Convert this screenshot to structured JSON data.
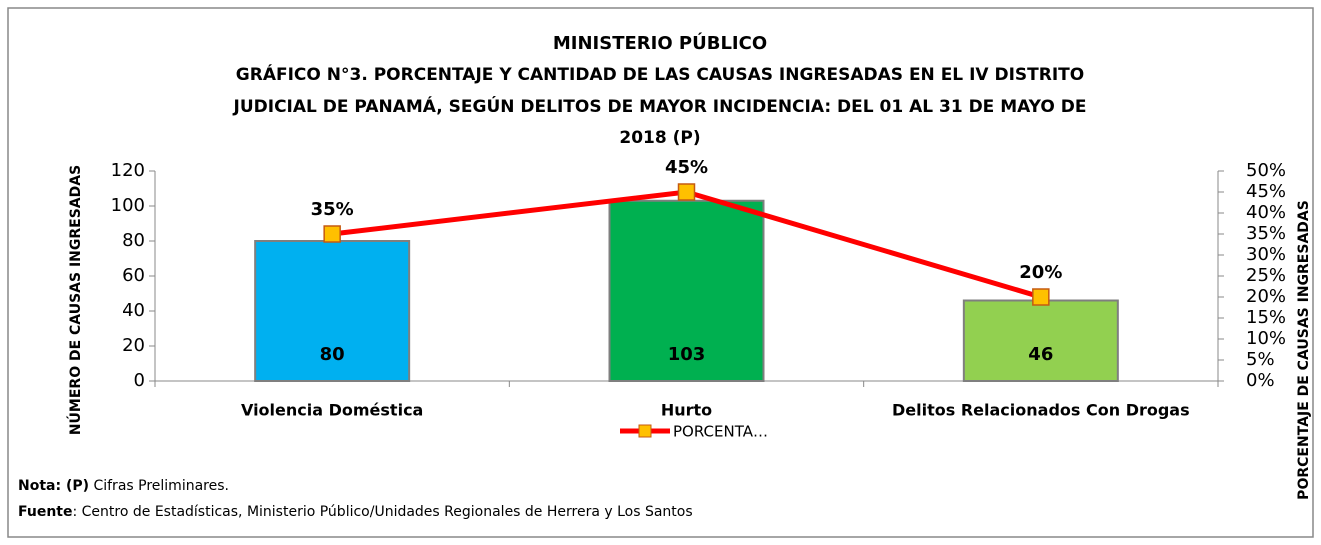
{
  "chart_data": {
    "type": "bar",
    "title": "MINISTERIO PÚBLICO",
    "subtitle": [
      "GRÁFICO N°3. PORCENTAJE Y CANTIDAD DE LAS CAUSAS INGRESADAS EN EL IV DISTRITO",
      "JUDICIAL DE PANAMÁ, SEGÚN DELITOS DE MAYOR INCIDENCIA: DEL 01 AL 31 DE MAYO DE",
      "2018 (P)"
    ],
    "y_label": "NÚMERO DE CAUSAS INGRESADAS",
    "y2_label": "PORCENTAJE DE CAUSAS INGRESADAS",
    "categories": [
      "Violencia Doméstica",
      "Hurto",
      "Delitos Relacionados Con Drogas"
    ],
    "series": [
      {
        "type": "bar",
        "colors": [
          "#00B0F0",
          "#00B050",
          "#92D050"
        ],
        "values": [
          80,
          103,
          46
        ]
      },
      {
        "type": "line",
        "name": "PORCENTA…",
        "axis": "y2",
        "color": "#FF0000",
        "marker_color": "#FFC000",
        "values": [
          35,
          45,
          20
        ],
        "value_labels": [
          "35%",
          "45%",
          "20%"
        ]
      }
    ],
    "ylim": [
      0,
      120
    ],
    "yticks": [
      0,
      20,
      40,
      60,
      80,
      100,
      120
    ],
    "y2lim": [
      0,
      50
    ],
    "y2ticks": [
      {
        "value": 0,
        "label": "0%"
      },
      {
        "value": 5,
        "label": "5%"
      },
      {
        "value": 10,
        "label": "10%"
      },
      {
        "value": 15,
        "label": "15%"
      },
      {
        "value": 20,
        "label": "20%"
      },
      {
        "value": 25,
        "label": "25%"
      },
      {
        "value": 30,
        "label": "30%"
      },
      {
        "value": 35,
        "label": "35%"
      },
      {
        "value": 40,
        "label": "40%"
      },
      {
        "value": 45,
        "label": "45%"
      },
      {
        "value": 50,
        "label": "50%"
      }
    ],
    "grid": false,
    "legend": "bottom",
    "notes": [
      {
        "label": "Nota: (P)",
        "text": " Cifras Preliminares."
      },
      {
        "label": "Fuente",
        "text": ": Centro de Estadísticas, Ministerio Público/Unidades Regionales de Herrera y Los Santos"
      }
    ]
  }
}
